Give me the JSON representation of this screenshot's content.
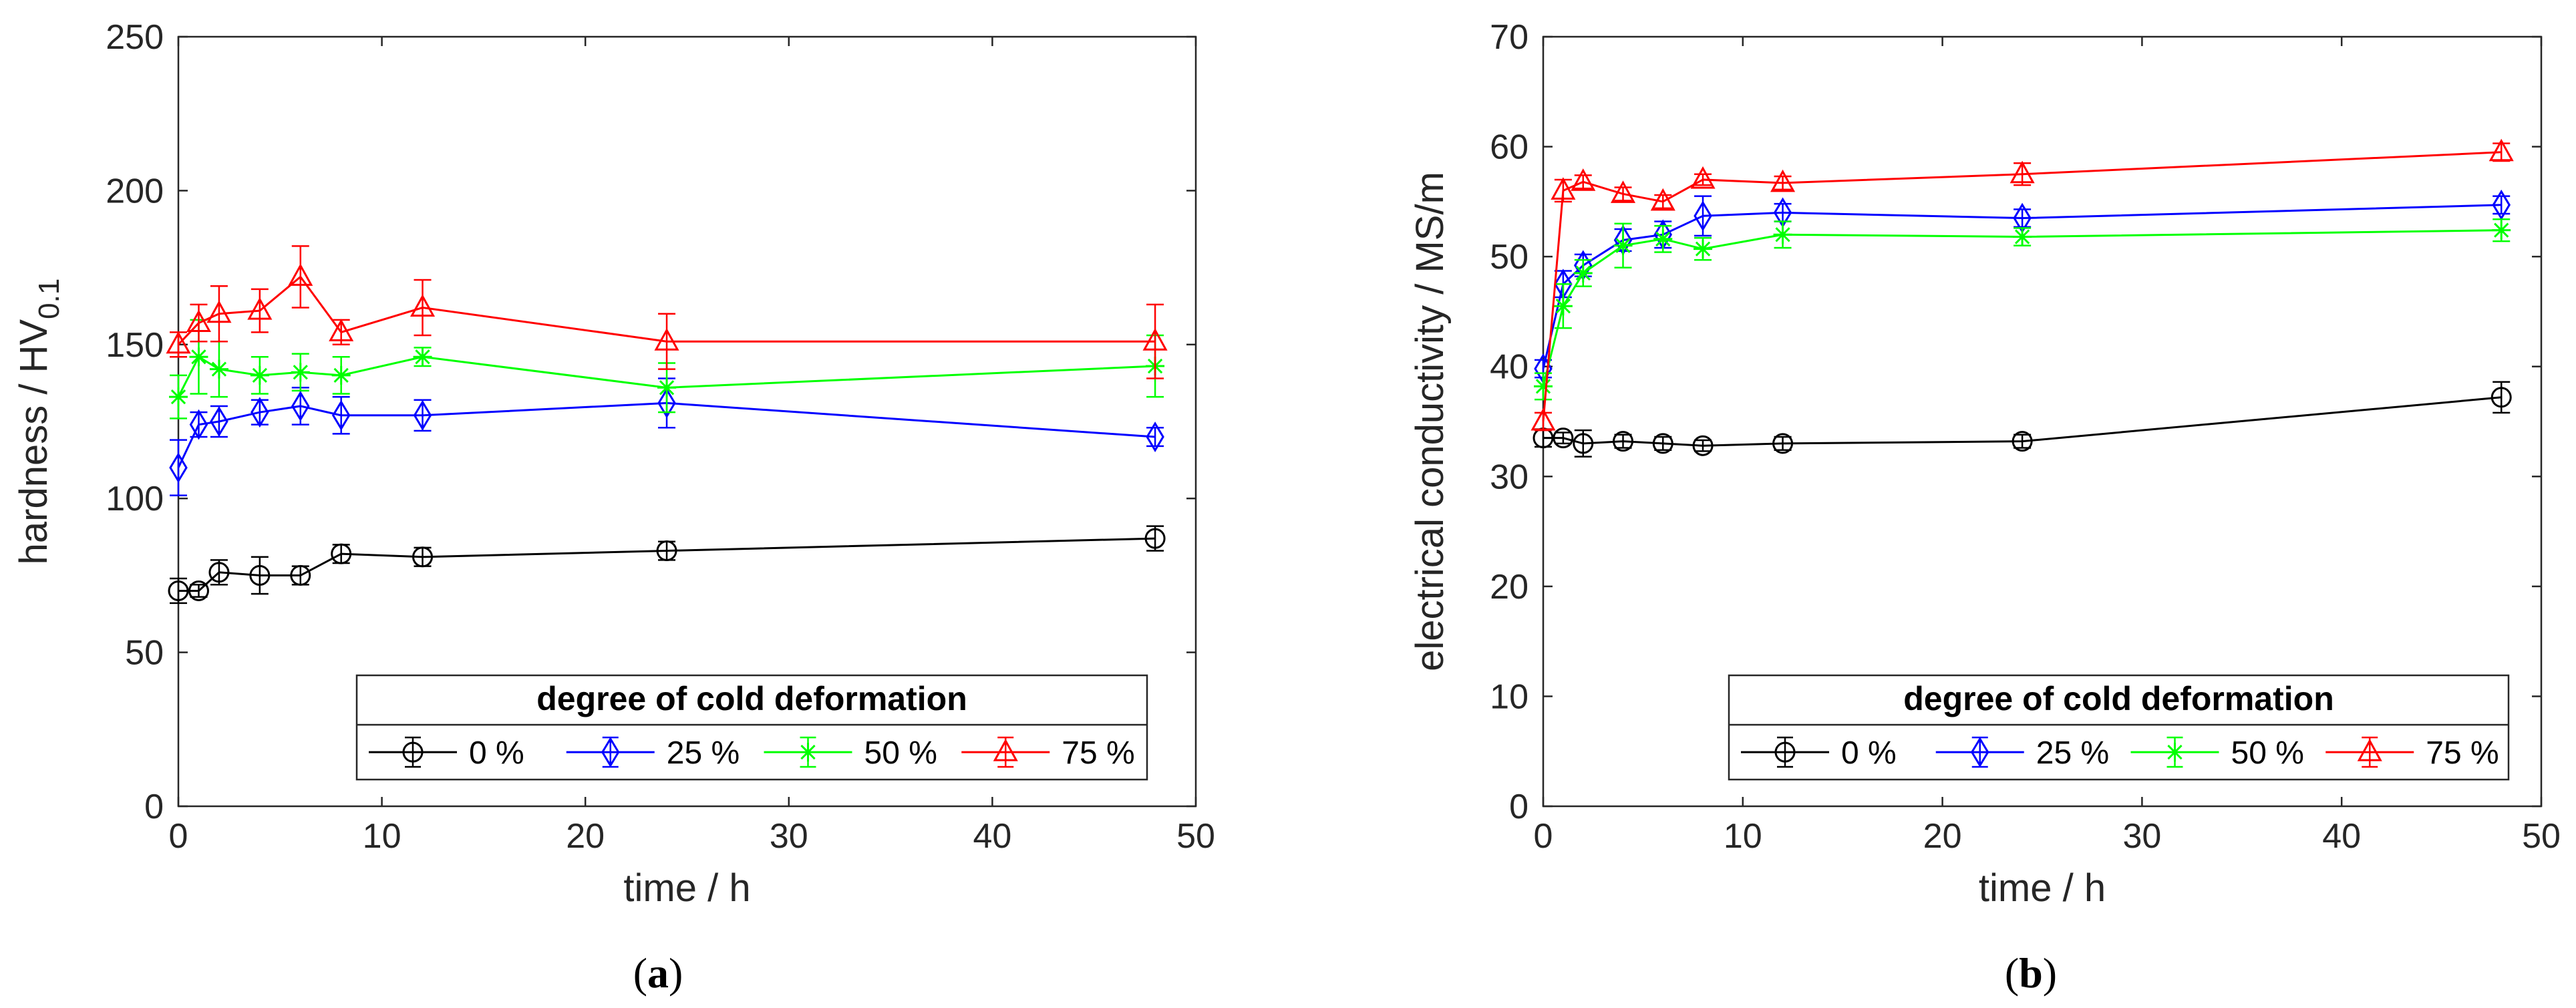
{
  "chart_data": [
    {
      "type": "line",
      "panel_label": "a",
      "xlabel": "time / h",
      "ylabel": "hardness / HV",
      "ylabel_sub": "0.1",
      "xlim": [
        0,
        50
      ],
      "ylim": [
        0,
        250
      ],
      "xticks": [
        0,
        10,
        20,
        30,
        40,
        50
      ],
      "yticks": [
        0,
        50,
        100,
        150,
        200,
        250
      ],
      "legend_title": "degree of cold deformation",
      "legend_position": "bottom-right",
      "x": [
        0,
        1,
        2,
        4,
        6,
        8,
        12,
        24,
        48
      ],
      "series": [
        {
          "name": "0 %",
          "color": "#000000",
          "marker": "circle",
          "values": [
            70,
            70,
            76,
            75,
            75,
            82,
            81,
            83,
            87
          ],
          "errors": [
            4,
            2,
            4,
            6,
            3,
            3,
            3,
            3,
            4
          ]
        },
        {
          "name": "25 %",
          "color": "#0000ff",
          "marker": "diamond",
          "values": [
            110,
            124,
            125,
            128,
            130,
            127,
            127,
            131,
            120
          ],
          "errors": [
            9,
            4,
            5,
            4,
            6,
            6,
            5,
            8,
            3
          ]
        },
        {
          "name": "50 %",
          "color": "#00ff00",
          "marker": "star",
          "values": [
            133,
            146,
            142,
            140,
            141,
            140,
            146,
            136,
            143
          ],
          "errors": [
            7,
            12,
            9,
            6,
            6,
            6,
            3,
            8,
            10
          ]
        },
        {
          "name": "75 %",
          "color": "#ff0000",
          "marker": "triangle",
          "values": [
            150,
            157,
            160,
            161,
            172,
            154,
            162,
            151,
            151
          ],
          "errors": [
            4,
            6,
            9,
            7,
            10,
            4,
            9,
            9,
            12
          ]
        }
      ]
    },
    {
      "type": "line",
      "panel_label": "b",
      "xlabel": "time / h",
      "ylabel": "electrical conductivity / MS/m",
      "ylabel_sub": "",
      "xlim": [
        0,
        50
      ],
      "ylim": [
        0,
        70
      ],
      "xticks": [
        0,
        10,
        20,
        30,
        40,
        50
      ],
      "yticks": [
        0,
        10,
        20,
        30,
        40,
        50,
        60,
        70
      ],
      "legend_title": "degree of cold deformation",
      "legend_position": "bottom-right",
      "x": [
        0,
        1,
        2,
        4,
        6,
        8,
        12,
        24,
        48
      ],
      "series": [
        {
          "name": "0 %",
          "color": "#000000",
          "marker": "circle",
          "values": [
            33.5,
            33.5,
            33.0,
            33.2,
            33.0,
            32.8,
            33.0,
            33.2,
            37.2
          ],
          "errors": [
            0.8,
            0.5,
            1.2,
            0.6,
            0.6,
            0.5,
            0.6,
            0.6,
            1.4
          ]
        },
        {
          "name": "25 %",
          "color": "#0000ff",
          "marker": "diamond",
          "values": [
            39.8,
            47.5,
            49.2,
            51.5,
            52.0,
            53.7,
            54.0,
            53.5,
            54.7
          ],
          "errors": [
            0.8,
            1.2,
            1.0,
            1.0,
            1.2,
            1.8,
            0.8,
            0.8,
            0.8
          ]
        },
        {
          "name": "50 %",
          "color": "#00ff00",
          "marker": "star",
          "values": [
            38.2,
            45.5,
            48.5,
            51.0,
            51.6,
            50.7,
            52.0,
            51.8,
            52.4
          ],
          "errors": [
            1.2,
            2.0,
            1.2,
            2.0,
            1.2,
            1.0,
            1.2,
            0.8,
            1.0
          ]
        },
        {
          "name": "75 %",
          "color": "#ff0000",
          "marker": "triangle",
          "values": [
            35.0,
            56.0,
            56.8,
            55.7,
            55.0,
            57.0,
            56.7,
            57.5,
            59.5
          ],
          "errors": [
            0.8,
            1.0,
            0.6,
            0.6,
            0.6,
            0.5,
            0.6,
            1.0,
            0.8
          ]
        }
      ]
    }
  ]
}
